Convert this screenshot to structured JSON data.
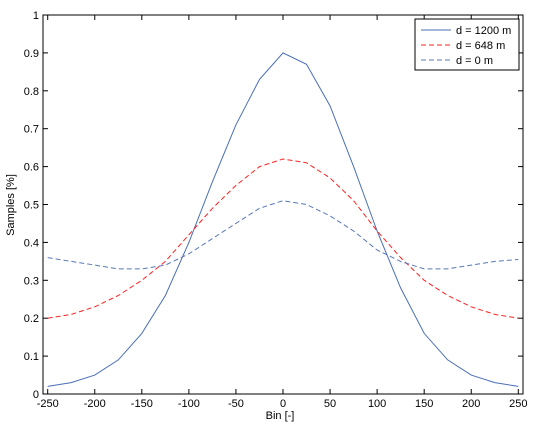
{
  "chart_data": {
    "type": "line",
    "xlabel": "Bin [-]",
    "ylabel": "Samples [%]",
    "xlim": [
      -255,
      255
    ],
    "ylim": [
      0,
      1
    ],
    "x_ticks": [
      -250,
      -200,
      -150,
      -100,
      -50,
      0,
      50,
      100,
      150,
      200,
      250
    ],
    "y_ticks": [
      0,
      0.1,
      0.2,
      0.3,
      0.4,
      0.5,
      0.6,
      0.7,
      0.8,
      0.9,
      1
    ],
    "x_tick_labels": [
      "-250",
      "-200",
      "-150",
      "-100",
      "-50",
      "0",
      "50",
      "100",
      "150",
      "200",
      "250"
    ],
    "y_tick_labels": [
      "0",
      "0.1",
      "0.2",
      "0.3",
      "0.4",
      "0.5",
      "0.6",
      "0.7",
      "0.8",
      "0.9",
      "1"
    ],
    "grid": false,
    "legend_position": "top-right",
    "series": [
      {
        "name": "d = 1200 m",
        "color": "#4a6fb5",
        "dash": "solid",
        "x": [
          -250,
          -225,
          -200,
          -175,
          -150,
          -125,
          -100,
          -75,
          -50,
          -25,
          0,
          25,
          50,
          75,
          100,
          125,
          150,
          175,
          200,
          225,
          250
        ],
        "y": [
          0.02,
          0.03,
          0.05,
          0.09,
          0.16,
          0.26,
          0.4,
          0.56,
          0.71,
          0.83,
          0.9,
          0.87,
          0.76,
          0.6,
          0.43,
          0.28,
          0.16,
          0.09,
          0.05,
          0.03,
          0.02
        ]
      },
      {
        "name": "d = 648 m",
        "color": "#ff2020",
        "dash": "dashed",
        "x": [
          -250,
          -225,
          -200,
          -175,
          -150,
          -125,
          -100,
          -75,
          -50,
          -25,
          0,
          25,
          50,
          75,
          100,
          125,
          150,
          175,
          200,
          225,
          250
        ],
        "y": [
          0.2,
          0.21,
          0.23,
          0.26,
          0.3,
          0.35,
          0.42,
          0.49,
          0.55,
          0.6,
          0.62,
          0.61,
          0.57,
          0.51,
          0.43,
          0.36,
          0.3,
          0.26,
          0.23,
          0.21,
          0.2
        ]
      },
      {
        "name": "d = 0 m",
        "color": "#5a78b8",
        "dash": "dashed",
        "x": [
          -250,
          -225,
          -200,
          -175,
          -150,
          -125,
          -100,
          -75,
          -50,
          -25,
          0,
          25,
          50,
          75,
          100,
          125,
          150,
          175,
          200,
          225,
          250
        ],
        "y": [
          0.36,
          0.35,
          0.34,
          0.33,
          0.33,
          0.34,
          0.37,
          0.41,
          0.45,
          0.49,
          0.51,
          0.5,
          0.47,
          0.43,
          0.38,
          0.35,
          0.33,
          0.33,
          0.34,
          0.35,
          0.355
        ]
      }
    ]
  }
}
